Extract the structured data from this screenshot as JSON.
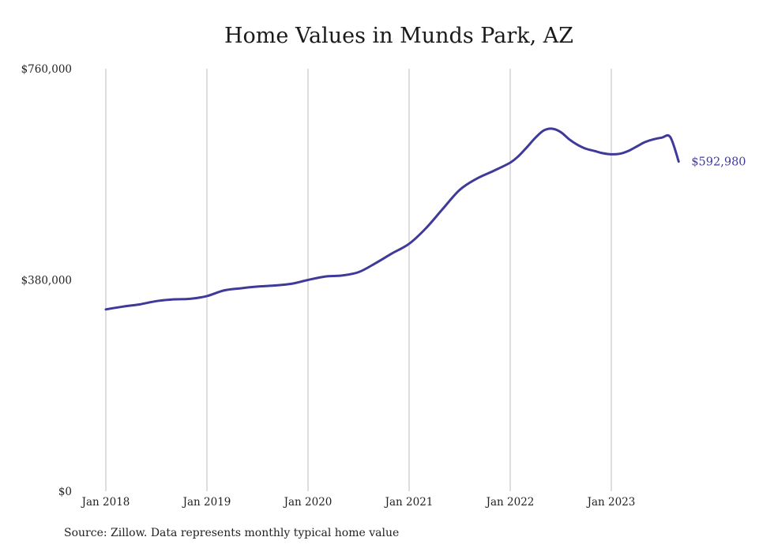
{
  "chart_data": {
    "type": "line",
    "title": "Home Values in Munds Park, AZ",
    "xlabel": "",
    "ylabel": "",
    "y_ticks": [
      "$0",
      "$380,000",
      "$760,000"
    ],
    "y_tick_values": [
      0,
      380000,
      760000
    ],
    "ylim": [
      0,
      760000
    ],
    "x_ticks": [
      "Jan 2018",
      "Jan 2019",
      "Jan 2020",
      "Jan 2021",
      "Jan 2022",
      "Jan 2023"
    ],
    "x_tick_dates": [
      "2018-01",
      "2019-01",
      "2020-01",
      "2021-01",
      "2022-01",
      "2023-01"
    ],
    "grid": "vertical lines at x ticks",
    "line_color": "#3f3a9a",
    "end_label": "$592,980",
    "series": [
      {
        "dates": [
          "2018-01",
          "2018-03",
          "2018-05",
          "2018-07",
          "2018-09",
          "2018-11",
          "2019-01",
          "2019-03",
          "2019-05",
          "2019-07",
          "2019-09",
          "2019-11",
          "2020-01",
          "2020-03",
          "2020-05",
          "2020-07",
          "2020-09",
          "2020-11",
          "2021-01",
          "2021-03",
          "2021-05",
          "2021-07",
          "2021-09",
          "2021-11",
          "2022-01",
          "2022-02",
          "2022-03",
          "2022-04",
          "2022-05",
          "2022-06",
          "2022-07",
          "2022-08",
          "2022-09",
          "2022-10",
          "2022-11",
          "2022-12",
          "2023-01",
          "2023-02",
          "2023-03",
          "2023-04",
          "2023-05",
          "2023-06",
          "2023-07",
          "2023-08",
          "2023-09"
        ],
        "values": [
          327000,
          332000,
          336000,
          342000,
          345000,
          346000,
          351000,
          361000,
          365000,
          368000,
          370000,
          373000,
          380000,
          386000,
          388000,
          394000,
          410000,
          428000,
          445000,
          473000,
          508000,
          542000,
          562000,
          576000,
          591000,
          603000,
          619000,
          636000,
          649000,
          652000,
          646000,
          633000,
          623000,
          616000,
          612000,
          608000,
          606000,
          607000,
          612000,
          620000,
          628000,
          633000,
          636000,
          637000,
          593000
        ]
      }
    ],
    "source": "Source: Zillow. Data represents monthly typical home value"
  }
}
